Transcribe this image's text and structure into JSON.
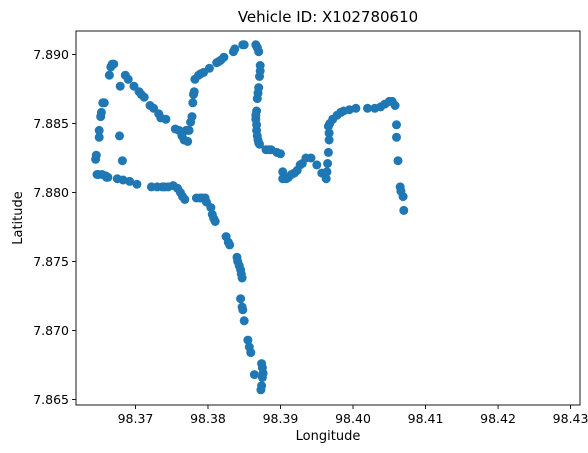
{
  "chart_data": {
    "type": "scatter",
    "title": "Vehicle ID: X102780610",
    "xlabel": "Longitude",
    "ylabel": "Latitude",
    "xlim": [
      98.3618,
      98.4313
    ],
    "ylim": [
      7.8646,
      7.8917
    ],
    "grid": false,
    "marker_color": "#1f77b4",
    "xticks": [
      {
        "value": 98.37,
        "label": "98.37"
      },
      {
        "value": 98.38,
        "label": "98.38"
      },
      {
        "value": 98.39,
        "label": "98.39"
      },
      {
        "value": 98.4,
        "label": "98.40"
      },
      {
        "value": 98.41,
        "label": "98.41"
      },
      {
        "value": 98.42,
        "label": "98.42"
      },
      {
        "value": 98.43,
        "label": "98.43"
      }
    ],
    "yticks": [
      {
        "value": 7.865,
        "label": "7.865"
      },
      {
        "value": 7.87,
        "label": "7.870"
      },
      {
        "value": 7.875,
        "label": "7.875"
      },
      {
        "value": 7.88,
        "label": "7.880"
      },
      {
        "value": 7.885,
        "label": "7.885"
      },
      {
        "value": 7.89,
        "label": "7.890"
      }
    ],
    "points": [
      [
        98.3645,
        7.8824
      ],
      [
        98.3646,
        7.8827
      ],
      [
        98.3647,
        7.8813
      ],
      [
        98.3649,
        7.8813
      ],
      [
        98.365,
        7.884
      ],
      [
        98.365,
        7.8845
      ],
      [
        98.3652,
        7.8855
      ],
      [
        98.3653,
        7.8858
      ],
      [
        98.3654,
        7.8813
      ],
      [
        98.3655,
        7.8865
      ],
      [
        98.3657,
        7.8865
      ],
      [
        98.3659,
        7.8812
      ],
      [
        98.366,
        7.8811
      ],
      [
        98.3662,
        7.8811
      ],
      [
        98.3664,
        7.8885
      ],
      [
        98.3666,
        7.8891
      ],
      [
        98.3668,
        7.8893
      ],
      [
        98.367,
        7.8893
      ],
      [
        98.3675,
        7.881
      ],
      [
        98.3678,
        7.8841
      ],
      [
        98.3679,
        7.8877
      ],
      [
        98.3682,
        7.8823
      ],
      [
        98.3683,
        7.8809
      ],
      [
        98.3686,
        7.8885
      ],
      [
        98.369,
        7.8882
      ],
      [
        98.3692,
        7.8808
      ],
      [
        98.3698,
        7.8877
      ],
      [
        98.3702,
        7.8806
      ],
      [
        98.3705,
        7.8873
      ],
      [
        98.3708,
        7.8871
      ],
      [
        98.3712,
        7.8869
      ],
      [
        98.372,
        7.8863
      ],
      [
        98.3722,
        7.8804
      ],
      [
        98.3725,
        7.8861
      ],
      [
        98.373,
        7.8804
      ],
      [
        98.3732,
        7.8857
      ],
      [
        98.3735,
        7.8854
      ],
      [
        98.3737,
        7.8804
      ],
      [
        98.374,
        7.8804
      ],
      [
        98.3742,
        7.8853
      ],
      [
        98.3745,
        7.8804
      ],
      [
        98.3752,
        7.8805
      ],
      [
        98.3755,
        7.8846
      ],
      [
        98.3758,
        7.8803
      ],
      [
        98.376,
        7.8845
      ],
      [
        98.3762,
        7.88
      ],
      [
        98.3764,
        7.8841
      ],
      [
        98.3765,
        7.8797
      ],
      [
        98.3767,
        7.8838
      ],
      [
        98.3768,
        7.8795
      ],
      [
        98.377,
        7.8845
      ],
      [
        98.3772,
        7.8837
      ],
      [
        98.3774,
        7.8845
      ],
      [
        98.3776,
        7.8851
      ],
      [
        98.3778,
        7.8855
      ],
      [
        98.3779,
        7.8865
      ],
      [
        98.378,
        7.8871
      ],
      [
        98.3781,
        7.8873
      ],
      [
        98.3782,
        7.8882
      ],
      [
        98.3784,
        7.8796
      ],
      [
        98.3787,
        7.8885
      ],
      [
        98.3789,
        7.8796
      ],
      [
        98.379,
        7.8886
      ],
      [
        98.3792,
        7.8796
      ],
      [
        98.3794,
        7.8887
      ],
      [
        98.3796,
        7.8796
      ],
      [
        98.3798,
        7.8793
      ],
      [
        98.3802,
        7.889
      ],
      [
        98.3804,
        7.8789
      ],
      [
        98.3806,
        7.8784
      ],
      [
        98.3808,
        7.8781
      ],
      [
        98.381,
        7.8779
      ],
      [
        98.3812,
        7.8894
      ],
      [
        98.3815,
        7.8895
      ],
      [
        98.3818,
        7.8896
      ],
      [
        98.3822,
        7.8898
      ],
      [
        98.3825,
        7.8768
      ],
      [
        98.3828,
        7.8764
      ],
      [
        98.383,
        7.8762
      ],
      [
        98.3835,
        7.8902
      ],
      [
        98.3837,
        7.8904
      ],
      [
        98.384,
        7.8753
      ],
      [
        98.3841,
        7.875
      ],
      [
        98.3843,
        7.8747
      ],
      [
        98.3845,
        7.8744
      ],
      [
        98.3846,
        7.8741
      ],
      [
        98.3847,
        7.8738
      ],
      [
        98.3848,
        7.8907
      ],
      [
        98.385,
        7.8907
      ],
      [
        98.3845,
        7.8723
      ],
      [
        98.3847,
        7.8717
      ],
      [
        98.3848,
        7.8715
      ],
      [
        98.385,
        7.8707
      ],
      [
        98.3855,
        7.8693
      ],
      [
        98.3857,
        7.8688
      ],
      [
        98.3859,
        7.8684
      ],
      [
        98.3864,
        7.8668
      ],
      [
        98.3866,
        7.8907
      ],
      [
        98.3868,
        7.8905
      ],
      [
        98.387,
        7.8902
      ],
      [
        98.3872,
        7.8892
      ],
      [
        98.3872,
        7.8888
      ],
      [
        98.3871,
        7.8884
      ],
      [
        98.387,
        7.8876
      ],
      [
        98.3869,
        7.8872
      ],
      [
        98.3868,
        7.8868
      ],
      [
        98.3867,
        7.8859
      ],
      [
        98.3866,
        7.8856
      ],
      [
        98.3866,
        7.8853
      ],
      [
        98.3867,
        7.8849
      ],
      [
        98.3867,
        7.8845
      ],
      [
        98.3868,
        7.8841
      ],
      [
        98.3869,
        7.8838
      ],
      [
        98.387,
        7.8836
      ],
      [
        98.3871,
        7.8835
      ],
      [
        98.3874,
        7.8676
      ],
      [
        98.3875,
        7.8673
      ],
      [
        98.3876,
        7.8669
      ],
      [
        98.3875,
        7.8666
      ],
      [
        98.3874,
        7.866
      ],
      [
        98.3873,
        7.8657
      ],
      [
        98.388,
        7.8831
      ],
      [
        98.3884,
        7.8831
      ],
      [
        98.3887,
        7.8831
      ],
      [
        98.3895,
        7.8829
      ],
      [
        98.39,
        7.8828
      ],
      [
        98.3903,
        7.8815
      ],
      [
        98.3903,
        7.881
      ],
      [
        98.3908,
        7.881
      ],
      [
        98.3911,
        7.8811
      ],
      [
        98.3915,
        7.8813
      ],
      [
        98.3919,
        7.8814
      ],
      [
        98.3923,
        7.8816
      ],
      [
        98.3927,
        7.882
      ],
      [
        98.393,
        7.8821
      ],
      [
        98.3935,
        7.8825
      ],
      [
        98.3942,
        7.8825
      ],
      [
        98.395,
        7.882
      ],
      [
        98.3957,
        7.8814
      ],
      [
        98.3963,
        7.881
      ],
      [
        98.3964,
        7.8815
      ],
      [
        98.3965,
        7.8821
      ],
      [
        98.3966,
        7.8829
      ],
      [
        98.3967,
        7.8838
      ],
      [
        98.3967,
        7.8843
      ],
      [
        98.3966,
        7.8848
      ],
      [
        98.3968,
        7.885
      ],
      [
        98.3972,
        7.8853
      ],
      [
        98.3978,
        7.8856
      ],
      [
        98.3983,
        7.8858
      ],
      [
        98.3987,
        7.8859
      ],
      [
        98.3995,
        7.886
      ],
      [
        98.4004,
        7.8861
      ],
      [
        98.402,
        7.8861
      ],
      [
        98.403,
        7.8861
      ],
      [
        98.4038,
        7.8862
      ],
      [
        98.4044,
        7.8864
      ],
      [
        98.405,
        7.8866
      ],
      [
        98.4054,
        7.8866
      ],
      [
        98.4058,
        7.8863
      ],
      [
        98.406,
        7.8849
      ],
      [
        98.406,
        7.884
      ],
      [
        98.4062,
        7.8823
      ],
      [
        98.4065,
        7.8804
      ],
      [
        98.4066,
        7.8801
      ],
      [
        98.4069,
        7.8797
      ],
      [
        98.407,
        7.8787
      ]
    ]
  }
}
